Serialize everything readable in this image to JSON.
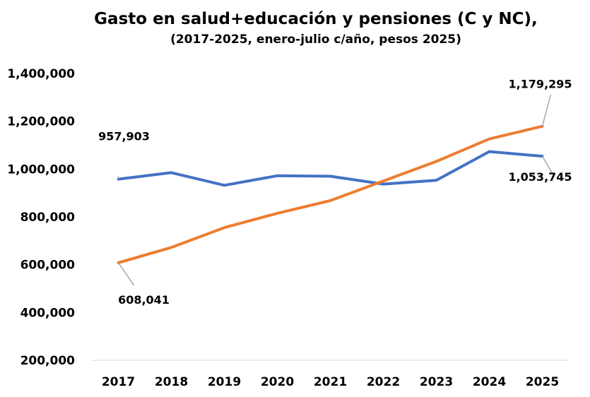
{
  "chart_data": {
    "type": "line",
    "title": "Gasto en salud+educación y pensiones (C y NC),",
    "subtitle": "(2017-2025, enero-julio c/año, pesos 2025)",
    "xlabel": "",
    "ylabel": "",
    "categories": [
      "2017",
      "2018",
      "2019",
      "2020",
      "2021",
      "2022",
      "2023",
      "2024",
      "2025"
    ],
    "ylim": [
      200000,
      1400000
    ],
    "yticks": [
      "200,000",
      "400,000",
      "600,000",
      "800,000",
      "1,000,000",
      "1,200,000",
      "1,400,000"
    ],
    "grid": false,
    "series": [
      {
        "color": "#4472C4",
        "values": [
          957903,
          985000,
          932000,
          972000,
          970000,
          937000,
          953000,
          1073000,
          1053745
        ]
      },
      {
        "color": "#ED7D31",
        "values": [
          608041,
          672000,
          755000,
          815000,
          868000,
          950000,
          1032000,
          1126000,
          1179295
        ]
      }
    ],
    "data_labels": [
      {
        "series": 0,
        "index": 0,
        "text": "957,903"
      },
      {
        "series": 0,
        "index": 8,
        "text": "1,053,745"
      },
      {
        "series": 1,
        "index": 0,
        "text": "608,041"
      },
      {
        "series": 1,
        "index": 8,
        "text": "1,179,295"
      }
    ]
  }
}
